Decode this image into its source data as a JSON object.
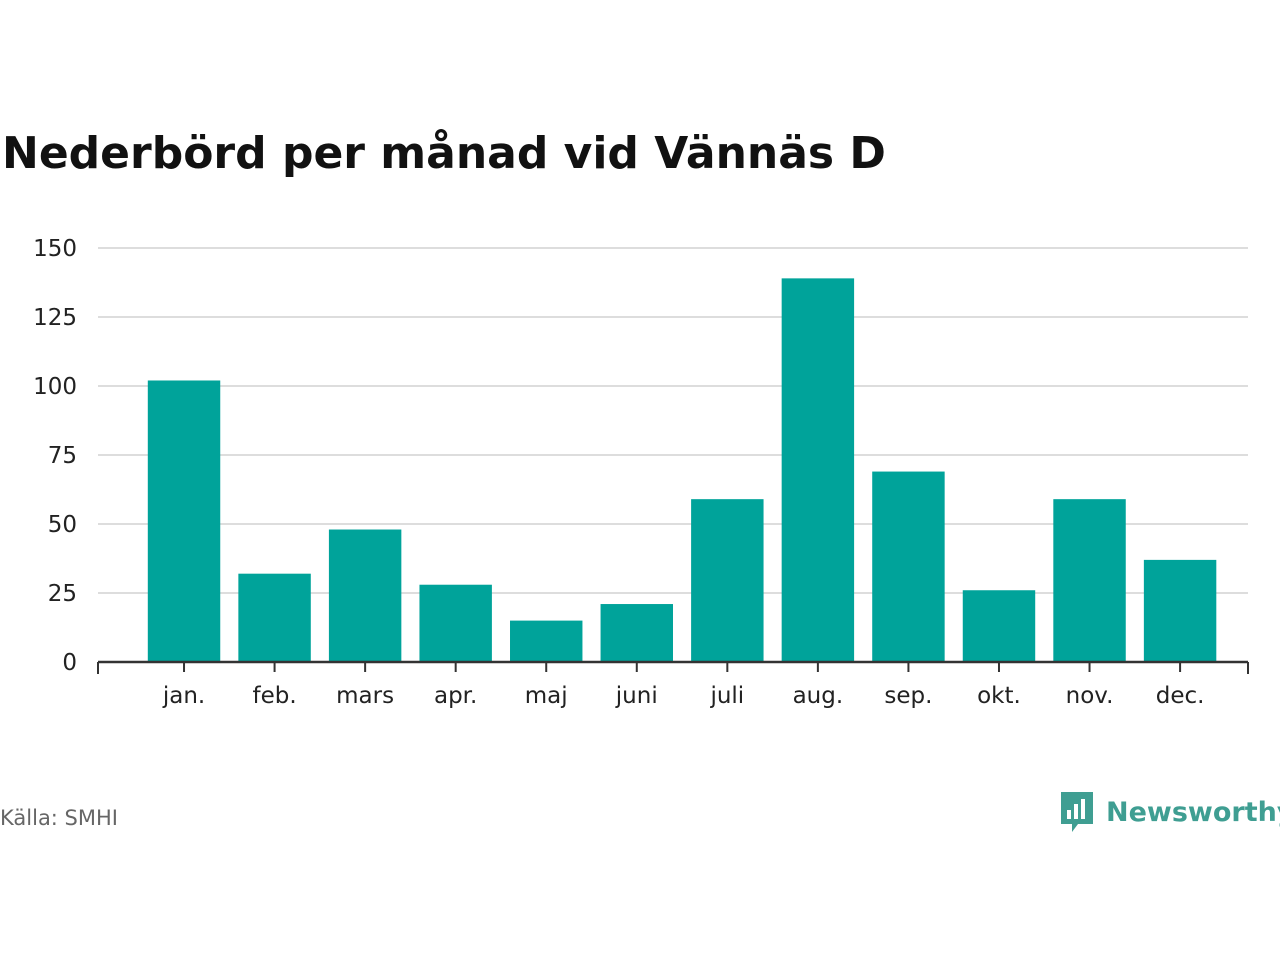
{
  "colors": {
    "bar": "#00a39a",
    "grid": "#dddddd",
    "axis": "#333333",
    "brand": "#3f9e92"
  },
  "footer": {
    "source": "Källa: SMHI",
    "brand_name": "Newsworthy",
    "brand_icon": "newsworthy-logo-icon"
  },
  "chart_data": {
    "type": "bar",
    "title": "Nederbörd per månad vid Vännäs D",
    "xlabel": "",
    "ylabel": "",
    "categories": [
      "jan.",
      "feb.",
      "mars",
      "apr.",
      "maj",
      "juni",
      "juli",
      "aug.",
      "sep.",
      "okt.",
      "nov.",
      "dec."
    ],
    "values": [
      102,
      32,
      48,
      28,
      15,
      21,
      59,
      139,
      69,
      26,
      59,
      37
    ],
    "ylim": [
      0,
      150
    ],
    "yticks": [
      "0",
      "25",
      "50",
      "75",
      "100",
      "125",
      "150"
    ],
    "grid": true,
    "legend": "none"
  }
}
